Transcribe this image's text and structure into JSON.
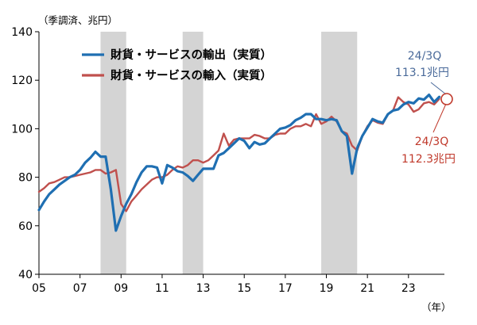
{
  "chart_data": {
    "type": "line",
    "unit_label": "（季調済、兆円）",
    "x_unit_label": "（年）",
    "x_ticks": [
      "05",
      "07",
      "09",
      "11",
      "13",
      "15",
      "17",
      "19",
      "21",
      "23"
    ],
    "y_ticks": [
      40,
      60,
      80,
      100,
      120,
      140
    ],
    "ylim": [
      40,
      140
    ],
    "xlim": [
      2005.0,
      2024.75
    ],
    "grid": false,
    "legend_position": "top-left",
    "recession_bands": [
      [
        2008.0,
        2009.25
      ],
      [
        2012.0,
        2013.0
      ],
      [
        2018.75,
        2020.5
      ]
    ],
    "series": [
      {
        "name": "財貨・サービスの輸出（実質）",
        "color": "#1f6fb2",
        "x": [
          2005.0,
          2005.25,
          2005.5,
          2005.75,
          2006.0,
          2006.25,
          2006.5,
          2006.75,
          2007.0,
          2007.25,
          2007.5,
          2007.75,
          2008.0,
          2008.25,
          2008.5,
          2008.75,
          2009.0,
          2009.25,
          2009.5,
          2009.75,
          2010.0,
          2010.25,
          2010.5,
          2010.75,
          2011.0,
          2011.25,
          2011.5,
          2011.75,
          2012.0,
          2012.25,
          2012.5,
          2012.75,
          2013.0,
          2013.25,
          2013.5,
          2013.75,
          2014.0,
          2014.25,
          2014.5,
          2014.75,
          2015.0,
          2015.25,
          2015.5,
          2015.75,
          2016.0,
          2016.25,
          2016.5,
          2016.75,
          2017.0,
          2017.25,
          2017.5,
          2017.75,
          2018.0,
          2018.25,
          2018.5,
          2018.75,
          2019.0,
          2019.25,
          2019.5,
          2019.75,
          2020.0,
          2020.25,
          2020.5,
          2020.75,
          2021.0,
          2021.25,
          2021.5,
          2021.75,
          2022.0,
          2022.25,
          2022.5,
          2022.75,
          2023.0,
          2023.25,
          2023.5,
          2023.75,
          2024.0,
          2024.25,
          2024.5
        ],
        "values": [
          66.5,
          70,
          73,
          75,
          77,
          78.5,
          80,
          81,
          83,
          86,
          88,
          90.5,
          88.5,
          88.5,
          75,
          58,
          64,
          69,
          73,
          78,
          82,
          84.5,
          84.5,
          84,
          77.5,
          85,
          84,
          82.5,
          82,
          80.5,
          78.5,
          81,
          83.5,
          83.5,
          83.5,
          89,
          90,
          92,
          94,
          96,
          95,
          92,
          94.5,
          93.5,
          94,
          96,
          98,
          100,
          100.5,
          101.5,
          103.5,
          104.5,
          106,
          106,
          104,
          104,
          103.5,
          104,
          103.5,
          99,
          97,
          81.5,
          92,
          97,
          100.5,
          104,
          103,
          102.5,
          106,
          107.5,
          108,
          110,
          111,
          110.5,
          112.5,
          112,
          114,
          111,
          113.1
        ]
      },
      {
        "name": "財貨・サービスの輸入（実質）",
        "color": "#c0504d",
        "x": [
          2005.0,
          2005.25,
          2005.5,
          2005.75,
          2006.0,
          2006.25,
          2006.5,
          2006.75,
          2007.0,
          2007.25,
          2007.5,
          2007.75,
          2008.0,
          2008.25,
          2008.5,
          2008.75,
          2009.0,
          2009.25,
          2009.5,
          2009.75,
          2010.0,
          2010.25,
          2010.5,
          2010.75,
          2011.0,
          2011.25,
          2011.5,
          2011.75,
          2012.0,
          2012.25,
          2012.5,
          2012.75,
          2013.0,
          2013.25,
          2013.5,
          2013.75,
          2014.0,
          2014.25,
          2014.5,
          2014.75,
          2015.0,
          2015.25,
          2015.5,
          2015.75,
          2016.0,
          2016.25,
          2016.5,
          2016.75,
          2017.0,
          2017.25,
          2017.5,
          2017.75,
          2018.0,
          2018.25,
          2018.5,
          2018.75,
          2019.0,
          2019.25,
          2019.5,
          2019.75,
          2020.0,
          2020.25,
          2020.5,
          2020.75,
          2021.0,
          2021.25,
          2021.5,
          2021.75,
          2022.0,
          2022.25,
          2022.5,
          2022.75,
          2023.0,
          2023.25,
          2023.5,
          2023.75,
          2024.0,
          2024.25,
          2024.5
        ],
        "values": [
          74,
          75.5,
          77.5,
          78,
          79,
          80,
          80,
          80.5,
          81,
          81.5,
          82,
          83,
          83,
          81.5,
          82,
          83,
          69,
          66,
          70,
          72.5,
          75,
          77,
          79,
          80,
          80,
          81,
          83,
          84.5,
          84,
          85,
          87,
          87,
          86,
          87,
          89,
          91,
          98,
          93,
          95.5,
          96,
          96,
          96,
          97.5,
          97,
          96,
          96,
          97.5,
          98,
          98,
          100,
          101,
          101,
          102,
          101,
          106,
          102,
          103,
          105,
          103,
          99,
          98,
          93,
          91,
          97,
          101,
          103.5,
          102.5,
          102,
          106,
          107.5,
          113,
          111,
          110,
          107,
          108,
          110.5,
          111,
          110,
          112.3
        ]
      }
    ],
    "annotations": {
      "export": {
        "period": "24/3Q",
        "value": "113.1兆円"
      },
      "import": {
        "period": "24/3Q",
        "value": "112.3兆円"
      }
    }
  }
}
